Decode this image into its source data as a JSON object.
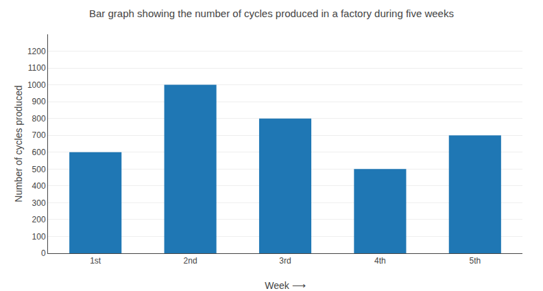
{
  "chart_data": {
    "type": "bar",
    "title": "Bar graph showing the number of cycles produced in a factory during five weeks",
    "categories": [
      "1st",
      "2nd",
      "3rd",
      "4th",
      "5th"
    ],
    "values": [
      600,
      1000,
      800,
      500,
      700
    ],
    "xlabel": "Week ⟶",
    "ylabel": "Number of cycles produced",
    "ylim": [
      0,
      1300
    ],
    "yticks": [
      0,
      100,
      200,
      300,
      400,
      500,
      600,
      700,
      800,
      900,
      1000,
      1100,
      1200
    ],
    "grid": true
  }
}
